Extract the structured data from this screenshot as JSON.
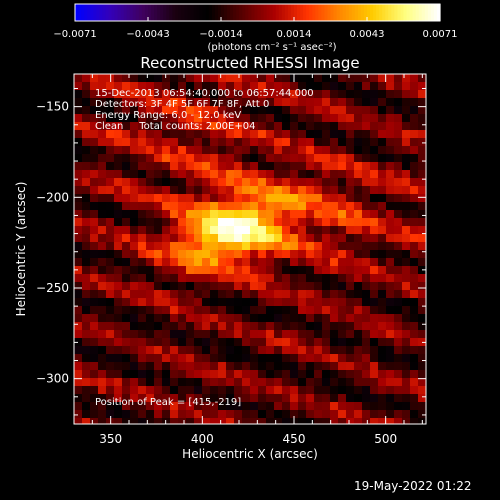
{
  "chart_data": {
    "type": "heatmap",
    "title": "Reconstructed RHESSI Image",
    "xlabel": "Heliocentric X (arcsec)",
    "ylabel": "Heliocentric Y (arcsec)",
    "xlim": [
      330,
      522
    ],
    "ylim": [
      -325,
      -132
    ],
    "x_ticks": [
      350,
      400,
      450,
      500
    ],
    "y_ticks": [
      -150,
      -200,
      -250,
      -300
    ],
    "x_tick_labels": [
      "350",
      "400",
      "450",
      "500"
    ],
    "y_tick_labels": [
      "−150",
      "−200",
      "−250",
      "−300"
    ],
    "colorbar": {
      "min": -0.0071,
      "max": 0.0071,
      "tick_labels": [
        "−0.0071",
        "−0.0043",
        "−0.0014",
        "0.0014",
        "0.0043",
        "0.0071"
      ],
      "units_label": "(photons cm⁻² s⁻¹ asec⁻²)",
      "colormap": [
        "#0000ff",
        "#3300bb",
        "#400060",
        "#1a0010",
        "#000000",
        "#550000",
        "#aa0000",
        "#ff3300",
        "#ff8800",
        "#ffcc00",
        "#ffff80",
        "#ffffff"
      ]
    },
    "annotations": [
      "15-Dec-2013 06:54:40.000 to 06:57:44.000",
      "Detectors: 3F 4F 5F 6F 7F 8F, Att 0",
      "Energy Range: 6.0 - 12.0 keV",
      "Clean     Total counts: 2.00E+04"
    ],
    "peak_label": "Position of Peak = [415,-219]",
    "peak": [
      415,
      -219
    ],
    "grid": false
  },
  "footer_timestamp": "19-May-2022 01:22"
}
